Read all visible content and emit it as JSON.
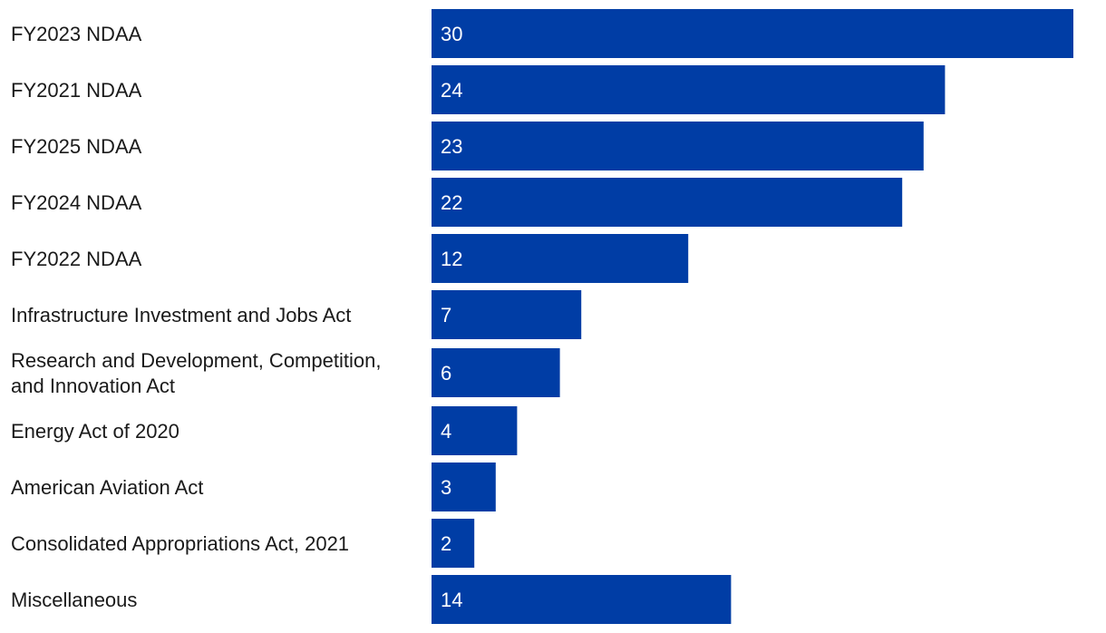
{
  "chart_data": {
    "type": "bar",
    "orientation": "horizontal",
    "title": "",
    "xlabel": "",
    "ylabel": "",
    "grid": false,
    "bar_color": "#003DA5",
    "categories": [
      "FY2023 NDAA",
      "FY2021 NDAA",
      "FY2025 NDAA",
      "FY2024 NDAA",
      "FY2022 NDAA",
      "Infrastructure Investment and Jobs Act",
      "Research and Development, Competition, and Innovation Act",
      "Energy Act of 2020",
      "American Aviation Act",
      "Consolidated Appropriations Act, 2021",
      "Miscellaneous"
    ],
    "values": [
      30,
      24,
      23,
      22,
      12,
      7,
      6,
      4,
      3,
      2,
      14
    ],
    "xlim": [
      0,
      30
    ]
  }
}
